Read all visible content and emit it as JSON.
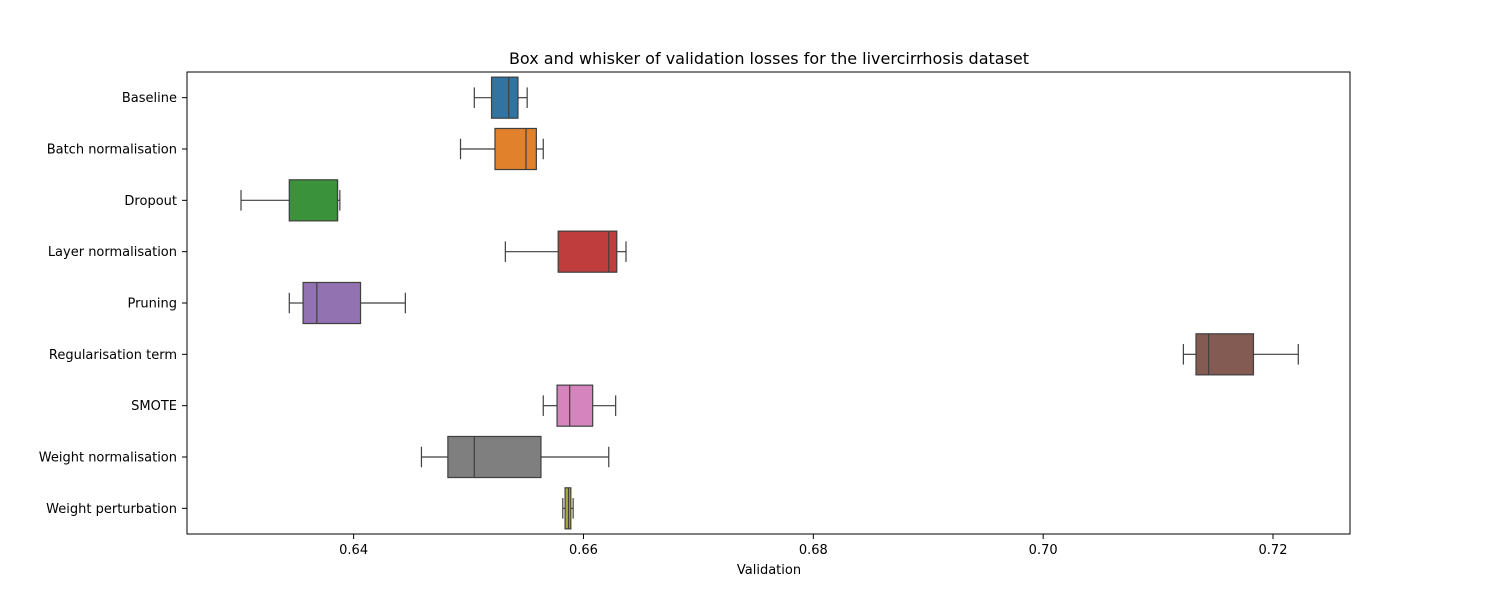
{
  "chart_data": {
    "type": "box",
    "title": "Box and whisker of validation losses for the livercirrhosis dataset",
    "xlabel": "Validation",
    "ylabel": "",
    "xlim": [
      0.6255,
      0.7267
    ],
    "xticks": [
      0.64,
      0.66,
      0.68,
      0.7,
      0.72
    ],
    "xtick_labels": [
      "0.64",
      "0.66",
      "0.68",
      "0.70",
      "0.72"
    ],
    "grid": false,
    "orientation": "horizontal",
    "categories": [
      "Baseline",
      "Batch normalisation",
      "Dropout",
      "Layer normalisation",
      "Pruning",
      "Regularisation term",
      "SMOTE",
      "Weight normalisation",
      "Weight perturbation"
    ],
    "series": [
      {
        "category": "Baseline",
        "color": "#3274a1",
        "whisker_low": 0.6505,
        "q1": 0.652,
        "median": 0.6535,
        "q3": 0.6543,
        "whisker_high": 0.6551
      },
      {
        "category": "Batch normalisation",
        "color": "#e1812c",
        "whisker_low": 0.6493,
        "q1": 0.6523,
        "median": 0.655,
        "q3": 0.6559,
        "whisker_high": 0.6565
      },
      {
        "category": "Dropout",
        "color": "#3a923a",
        "whisker_low": 0.6302,
        "q1": 0.6344,
        "median": 0.6386,
        "q3": 0.6386,
        "whisker_high": 0.6388
      },
      {
        "category": "Layer normalisation",
        "color": "#c03d3e",
        "whisker_low": 0.6532,
        "q1": 0.6578,
        "median": 0.6622,
        "q3": 0.6629,
        "whisker_high": 0.6637
      },
      {
        "category": "Pruning",
        "color": "#9372b2",
        "whisker_low": 0.6344,
        "q1": 0.6356,
        "median": 0.6368,
        "q3": 0.6406,
        "whisker_high": 0.6445
      },
      {
        "category": "Regularisation term",
        "color": "#845b53",
        "whisker_low": 0.7122,
        "q1": 0.7133,
        "median": 0.7144,
        "q3": 0.7183,
        "whisker_high": 0.7222
      },
      {
        "category": "SMOTE",
        "color": "#d684bd",
        "whisker_low": 0.6565,
        "q1": 0.6577,
        "median": 0.6588,
        "q3": 0.6608,
        "whisker_high": 0.6628
      },
      {
        "category": "Weight normalisation",
        "color": "#7f7f7f",
        "whisker_low": 0.6459,
        "q1": 0.6482,
        "median": 0.6505,
        "q3": 0.6563,
        "whisker_high": 0.6622
      },
      {
        "category": "Weight perturbation",
        "color": "#a9aa35",
        "whisker_low": 0.6582,
        "q1": 0.6584,
        "median": 0.6587,
        "q3": 0.6589,
        "whisker_high": 0.6591
      }
    ]
  }
}
